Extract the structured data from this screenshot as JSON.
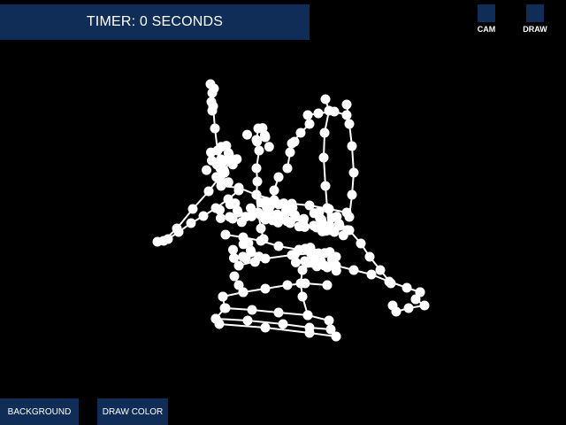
{
  "timer": {
    "text": "TIMER: 0 SECONDS"
  },
  "top_buttons": {
    "cam_label": "CAM",
    "draw_label": "DRAW"
  },
  "bottom_buttons": {
    "background_label": "BACKGROUND",
    "draw_color_label": "DRAW COLOR"
  },
  "colors": {
    "background": "#000000",
    "panel": "#0f2d57",
    "stroke": "#ffffff"
  }
}
